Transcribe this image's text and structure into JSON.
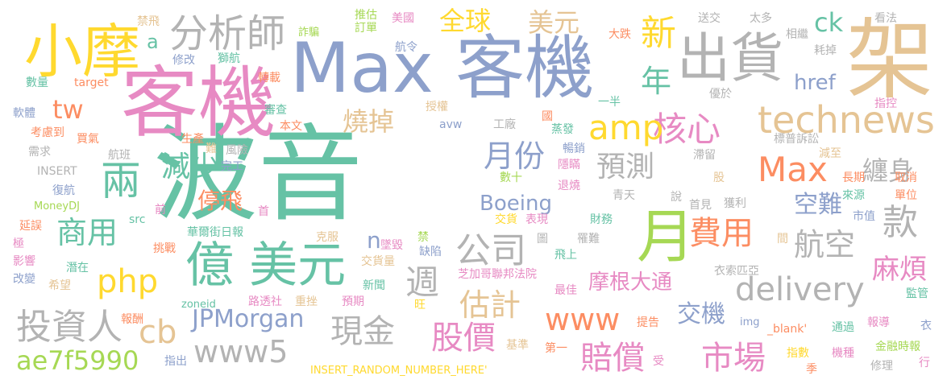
{
  "cloud": {
    "words": [
      {
        "text": "波音",
        "color": "#66c2a5"
      },
      {
        "text": "Max 客機",
        "color": "#8da0cb"
      },
      {
        "text": "架",
        "color": "#e5c494"
      },
      {
        "text": "客機",
        "color": "#e78ac3"
      },
      {
        "text": "小摩",
        "color": "#ffd92f"
      },
      {
        "text": "出貨",
        "color": "#b3b3b3"
      },
      {
        "text": "億 美元",
        "color": "#66c2a5"
      },
      {
        "text": "月",
        "color": "#a6d854"
      },
      {
        "text": "分析師",
        "color": "#b3b3b3"
      },
      {
        "text": "technews",
        "color": "#e5c494"
      },
      {
        "text": "核心",
        "color": "#e78ac3"
      },
      {
        "text": "Max",
        "color": "#fc8d62"
      },
      {
        "text": "amp",
        "color": "#ffd92f"
      },
      {
        "text": "新",
        "color": "#ffd92f"
      },
      {
        "text": "年",
        "color": "#66c2a5"
      },
      {
        "text": "ck",
        "color": "#66c2a5"
      },
      {
        "text": "全球",
        "color": "#ffd92f"
      },
      {
        "text": "美元",
        "color": "#e5c494"
      },
      {
        "text": "兩",
        "color": "#66c2a5"
      },
      {
        "text": "減少",
        "color": "#66c2a5"
      },
      {
        "text": "tw",
        "color": "#fc8d62"
      },
      {
        "text": "商用",
        "color": "#66c2a5"
      },
      {
        "text": "php",
        "color": "#ffd92f"
      },
      {
        "text": "投資人",
        "color": "#b3b3b3"
      },
      {
        "text": "cb",
        "color": "#e5c494"
      },
      {
        "text": "ae7f5990",
        "color": "#a6d854"
      },
      {
        "text": "www5",
        "color": "#b3b3b3"
      },
      {
        "text": "現金",
        "color": "#b3b3b3"
      },
      {
        "text": "JPMorgan",
        "color": "#8da0cb"
      },
      {
        "text": "公司",
        "color": "#b3b3b3"
      },
      {
        "text": "週",
        "color": "#b3b3b3"
      },
      {
        "text": "估計",
        "color": "#e5c494"
      },
      {
        "text": "費用",
        "color": "#fc8d62"
      },
      {
        "text": "股價",
        "color": "#e78ac3"
      },
      {
        "text": "賠償",
        "color": "#e78ac3"
      },
      {
        "text": "市場",
        "color": "#e78ac3"
      },
      {
        "text": "www",
        "color": "#fc8d62"
      },
      {
        "text": "delivery",
        "color": "#b3b3b3"
      },
      {
        "text": "航空",
        "color": "#b3b3b3"
      },
      {
        "text": "款",
        "color": "#b3b3b3"
      },
      {
        "text": "麻煩",
        "color": "#e78ac3"
      },
      {
        "text": "纏身",
        "color": "#b3b3b3"
      },
      {
        "text": "空難",
        "color": "#8da0cb"
      },
      {
        "text": "預測",
        "color": "#b3b3b3"
      },
      {
        "text": "月份",
        "color": "#8da0cb"
      },
      {
        "text": "燒掉",
        "color": "#e5c494"
      },
      {
        "text": "停飛",
        "color": "#fc8d62"
      },
      {
        "text": "Boeing",
        "color": "#8da0cb"
      },
      {
        "text": "摩根大通",
        "color": "#e78ac3"
      },
      {
        "text": "交機",
        "color": "#8da0cb"
      },
      {
        "text": "href",
        "color": "#8da0cb"
      },
      {
        "text": "a",
        "color": "#66c2a5"
      },
      {
        "text": "n",
        "color": "#8da0cb"
      },
      {
        "text": "禁飛",
        "color": "#e5c494"
      },
      {
        "text": "詐騙",
        "color": "#a6d854"
      },
      {
        "text": "推估",
        "color": "#a6d854"
      },
      {
        "text": "訂單",
        "color": "#a6d854"
      },
      {
        "text": "美國",
        "color": "#e78ac3"
      },
      {
        "text": "送交",
        "color": "#b3b3b3"
      },
      {
        "text": "太多",
        "color": "#b3b3b3"
      },
      {
        "text": "看法",
        "color": "#b3b3b3"
      },
      {
        "text": "航令",
        "color": "#8da0cb"
      },
      {
        "text": "大跌",
        "color": "#fc8d62"
      },
      {
        "text": "相繼",
        "color": "#b3b3b3"
      },
      {
        "text": "耗掉",
        "color": "#b3b3b3"
      },
      {
        "text": "修改",
        "color": "#8da0cb"
      },
      {
        "text": "獅航",
        "color": "#66c2a5"
      },
      {
        "text": "數量",
        "color": "#66c2a5"
      },
      {
        "text": "target",
        "color": "#fc8d62"
      },
      {
        "text": "轉載",
        "color": "#fc8d62"
      },
      {
        "text": "優於",
        "color": "#b3b3b3"
      },
      {
        "text": "指控",
        "color": "#e78ac3"
      },
      {
        "text": "一半",
        "color": "#66c2a5"
      },
      {
        "text": "審查",
        "color": "#66c2a5"
      },
      {
        "text": "授權",
        "color": "#e5c494"
      },
      {
        "text": "軟體",
        "color": "#8da0cb"
      },
      {
        "text": "本文",
        "color": "#fc8d62"
      },
      {
        "text": "國",
        "color": "#fc8d62"
      },
      {
        "text": "考慮到",
        "color": "#fc8d62"
      },
      {
        "text": "avw",
        "color": "#8da0cb"
      },
      {
        "text": "工廠",
        "color": "#b3b3b3"
      },
      {
        "text": "蒸發",
        "color": "#66c2a5"
      },
      {
        "text": "標普訴訟",
        "color": "#b3b3b3"
      },
      {
        "text": "買氣",
        "color": "#fc8d62"
      },
      {
        "text": "生產",
        "color": "#fc8d62"
      },
      {
        "text": "暢銷",
        "color": "#8da0cb"
      },
      {
        "text": "滯留",
        "color": "#b3b3b3"
      },
      {
        "text": "減至",
        "color": "#e5c494"
      },
      {
        "text": "需求",
        "color": "#b3b3b3"
      },
      {
        "text": "航班",
        "color": "#b3b3b3"
      },
      {
        "text": "難",
        "color": "#e5c494"
      },
      {
        "text": "風險",
        "color": "#b3b3b3"
      },
      {
        "text": "INSERT",
        "color": "#b3b3b3"
      },
      {
        "text": "完工",
        "color": "#8da0cb"
      },
      {
        "text": "隱瞞",
        "color": "#e78ac3"
      },
      {
        "text": "數十",
        "color": "#a6d854"
      },
      {
        "text": "股",
        "color": "#e5c494"
      },
      {
        "text": "長期",
        "color": "#fc8d62"
      },
      {
        "text": "取消",
        "color": "#fc8d62"
      },
      {
        "text": "復航",
        "color": "#8da0cb"
      },
      {
        "text": "退燒",
        "color": "#e78ac3"
      },
      {
        "text": "青天",
        "color": "#b3b3b3"
      },
      {
        "text": "來源",
        "color": "#66c2a5"
      },
      {
        "text": "單位",
        "color": "#fc8d62"
      },
      {
        "text": "MoneyDJ",
        "color": "#a6d854"
      },
      {
        "text": "說",
        "color": "#b3b3b3"
      },
      {
        "text": "首見",
        "color": "#b3b3b3"
      },
      {
        "text": "獲利",
        "color": "#b3b3b3"
      },
      {
        "text": "延誤",
        "color": "#fc8d62"
      },
      {
        "text": "前",
        "color": "#e78ac3"
      },
      {
        "text": "首",
        "color": "#e78ac3"
      },
      {
        "text": "交貨",
        "color": "#ffd92f"
      },
      {
        "text": "表現",
        "color": "#e78ac3"
      },
      {
        "text": "財務",
        "color": "#66c2a5"
      },
      {
        "text": "市值",
        "color": "#8da0cb"
      },
      {
        "text": "src",
        "color": "#66c2a5"
      },
      {
        "text": "極",
        "color": "#e78ac3"
      },
      {
        "text": "華爾街日報",
        "color": "#66c2a5"
      },
      {
        "text": "克服",
        "color": "#e5c494"
      },
      {
        "text": "禁",
        "color": "#a6d854"
      },
      {
        "text": "圖",
        "color": "#b3b3b3"
      },
      {
        "text": "罹難",
        "color": "#b3b3b3"
      },
      {
        "text": "間",
        "color": "#e5c494"
      },
      {
        "text": "影響",
        "color": "#e78ac3"
      },
      {
        "text": "挑戰",
        "color": "#fc8d62"
      },
      {
        "text": "墜毀",
        "color": "#e78ac3"
      },
      {
        "text": "缺陷",
        "color": "#8da0cb"
      },
      {
        "text": "交貨量",
        "color": "#e5c494"
      },
      {
        "text": "飛上",
        "color": "#66c2a5"
      },
      {
        "text": "衣索匹亞",
        "color": "#b3b3b3"
      },
      {
        "text": "改變",
        "color": "#8da0cb"
      },
      {
        "text": "潛在",
        "color": "#66c2a5"
      },
      {
        "text": "芝加哥聯邦法院",
        "color": "#e78ac3"
      },
      {
        "text": "最佳",
        "color": "#e78ac3"
      },
      {
        "text": "新聞",
        "color": "#66c2a5"
      },
      {
        "text": "希望",
        "color": "#e5c494"
      },
      {
        "text": "路透社",
        "color": "#e78ac3"
      },
      {
        "text": "重挫",
        "color": "#e5c494"
      },
      {
        "text": "預期",
        "color": "#e78ac3"
      },
      {
        "text": "旺",
        "color": "#ffd92f"
      },
      {
        "text": "監管",
        "color": "#66c2a5"
      },
      {
        "text": "zoneid",
        "color": "#66c2a5"
      },
      {
        "text": "img",
        "color": "#8da0cb"
      },
      {
        "text": "報酬",
        "color": "#fc8d62"
      },
      {
        "text": "提告",
        "color": "#fc8d62"
      },
      {
        "text": "_blank'",
        "color": "#fc8d62"
      },
      {
        "text": "通過",
        "color": "#66c2a5"
      },
      {
        "text": "報導",
        "color": "#e78ac3"
      },
      {
        "text": "衣",
        "color": "#8da0cb"
      },
      {
        "text": "基準",
        "color": "#e5c494"
      },
      {
        "text": "第一",
        "color": "#fc8d62"
      },
      {
        "text": "指數",
        "color": "#ffd92f"
      },
      {
        "text": "機種",
        "color": "#e78ac3"
      },
      {
        "text": "金融時報",
        "color": "#a6d854"
      },
      {
        "text": "指出",
        "color": "#8da0cb"
      },
      {
        "text": "受",
        "color": "#e78ac3"
      },
      {
        "text": "INSERT_RANDOM_NUMBER_HERE'",
        "color": "#ffd92f"
      },
      {
        "text": "季",
        "color": "#fc8d62"
      },
      {
        "text": "修理",
        "color": "#b3b3b3"
      },
      {
        "text": "行",
        "color": "#e78ac3"
      }
    ]
  }
}
